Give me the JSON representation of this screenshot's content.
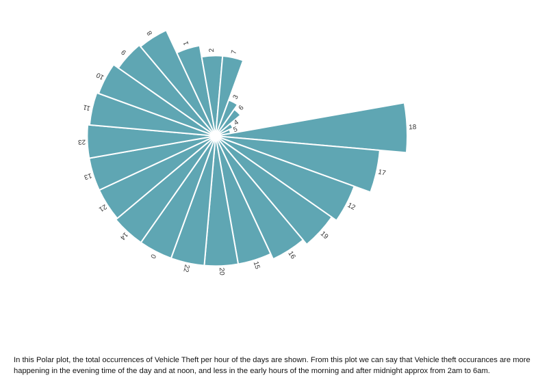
{
  "chart_data": {
    "type": "polar-bar",
    "title": "",
    "categories": [
      "18",
      "17",
      "12",
      "19",
      "16",
      "15",
      "20",
      "22",
      "0",
      "14",
      "21",
      "13",
      "23",
      "11",
      "10",
      "9",
      "8",
      "1",
      "2",
      "7",
      "3",
      "6",
      "4",
      "5"
    ],
    "values": [
      100,
      86,
      77,
      74,
      71,
      68,
      68,
      68,
      68,
      68,
      67,
      67,
      67,
      66,
      65,
      62,
      61,
      48,
      42,
      42,
      20,
      17,
      10,
      8
    ],
    "color": "#5fa6b3",
    "stroke": "#ffffff",
    "start_angle_deg": 80,
    "direction": "clockwise"
  },
  "caption": "In this Polar plot, the total occurrences of Vehicle Theft per hour of the days are shown. From this plot we can say that Vehicle theft occurances are more happening in the evening time of the day and at noon, and less in the early hours of the morning and after midnight approx from 2am to 6am."
}
